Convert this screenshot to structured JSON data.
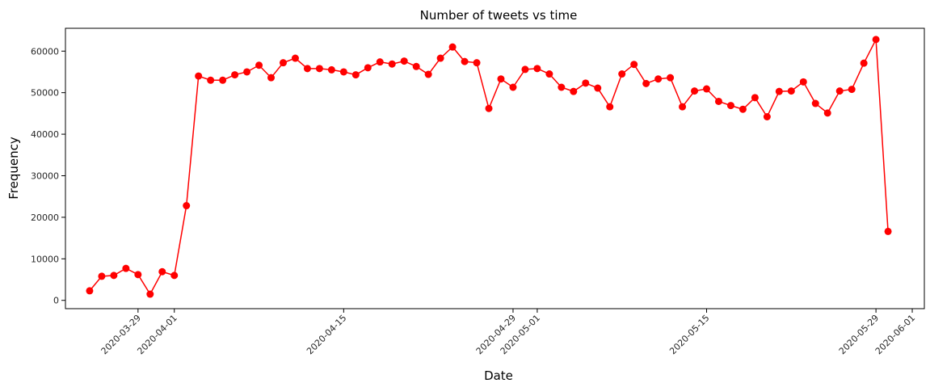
{
  "chart_data": {
    "type": "line",
    "title": "Number of tweets vs time",
    "xlabel": "Date",
    "ylabel": "Frequency",
    "x_start": "2020-03-25",
    "x_step_days": 1,
    "xlim": [
      "2020-03-23",
      "2020-06-02"
    ],
    "ylim": [
      -2000,
      65500
    ],
    "xticks": [
      "2020-03-29",
      "2020-04-01",
      "2020-04-15",
      "2020-04-29",
      "2020-05-01",
      "2020-05-15",
      "2020-05-29",
      "2020-06-01"
    ],
    "yticks": [
      0,
      10000,
      20000,
      30000,
      40000,
      50000,
      60000
    ],
    "grid": false,
    "line_color": "#ff0000",
    "series": [
      {
        "values": [
          2300,
          5800,
          6000,
          7700,
          6200,
          1500,
          6900,
          6000,
          22800,
          54000,
          53000,
          53000,
          54300,
          55000,
          56600,
          53600,
          57200,
          58300,
          55800,
          55800,
          55500,
          55000,
          54300,
          56000,
          57400,
          56900,
          57600,
          56300,
          54400,
          58300,
          61000,
          57500,
          57200,
          46200,
          53300,
          51300,
          55600,
          55800,
          54500,
          51300,
          50300,
          52300,
          51100,
          46600,
          54500,
          56800,
          52200,
          53300,
          53600,
          46600,
          50400,
          50900,
          47900,
          46900,
          46000,
          48800,
          44200,
          50300,
          50400,
          52600,
          47400,
          45100,
          50400,
          50800,
          57100,
          62800,
          16600
        ]
      }
    ]
  }
}
